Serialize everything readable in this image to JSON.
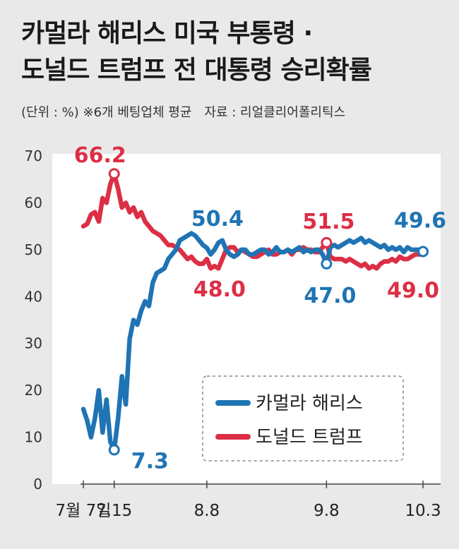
{
  "header": {
    "title_line1": "카멀라 해리스 미국 부통령 ·",
    "title_line2": "도널드 트럼프 전 대통령 승리확률",
    "unit_note": "(단위 : %) ※6개 베팅업체 평균",
    "source": "자료 : 리얼클리어폴리틱스"
  },
  "colors": {
    "harris": "#1f74b4",
    "trump": "#dc2f45",
    "background": "#e9e9e9"
  },
  "chart_data": {
    "type": "line",
    "ylim": [
      0,
      70
    ],
    "y_ticks": [
      "0",
      "10",
      "20",
      "30",
      "40",
      "50",
      "60",
      "70"
    ],
    "x_ticks": [
      {
        "pos": 0,
        "label": "7월 7일"
      },
      {
        "pos": 8,
        "label": "7.15"
      },
      {
        "pos": 32,
        "label": "8.8"
      },
      {
        "pos": 63,
        "label": "9.8"
      },
      {
        "pos": 88,
        "label": "10.3"
      }
    ],
    "xlim": [
      0,
      88
    ],
    "series": [
      {
        "name": "카멀라 해리스",
        "color": "#1f74b4",
        "points": [
          [
            0,
            16
          ],
          [
            1,
            13.5
          ],
          [
            2,
            10
          ],
          [
            3,
            14
          ],
          [
            4,
            20
          ],
          [
            5,
            11
          ],
          [
            6,
            18
          ],
          [
            7,
            9
          ],
          [
            8,
            7.3
          ],
          [
            9,
            14
          ],
          [
            10,
            23
          ],
          [
            11,
            17
          ],
          [
            12,
            31
          ],
          [
            13,
            35
          ],
          [
            14,
            34
          ],
          [
            15,
            37
          ],
          [
            16,
            39
          ],
          [
            17,
            38
          ],
          [
            18,
            43
          ],
          [
            19,
            45
          ],
          [
            20,
            45.5
          ],
          [
            21,
            46
          ],
          [
            22,
            48
          ],
          [
            23,
            49
          ],
          [
            24,
            50
          ],
          [
            25,
            52
          ],
          [
            26,
            52.5
          ],
          [
            27,
            53
          ],
          [
            28,
            53.5
          ],
          [
            29,
            53
          ],
          [
            30,
            52
          ],
          [
            31,
            51
          ],
          [
            32,
            50.4
          ],
          [
            33,
            49
          ],
          [
            34,
            50
          ],
          [
            35,
            51.5
          ],
          [
            36,
            52
          ],
          [
            37,
            50
          ],
          [
            38,
            49
          ],
          [
            39,
            48.5
          ],
          [
            40,
            49
          ],
          [
            41,
            50
          ],
          [
            42,
            50
          ],
          [
            43,
            49
          ],
          [
            44,
            49
          ],
          [
            45,
            49.5
          ],
          [
            46,
            50
          ],
          [
            47,
            50
          ],
          [
            48,
            49
          ],
          [
            49,
            49.5
          ],
          [
            50,
            50.5
          ],
          [
            51,
            49.5
          ],
          [
            52,
            49.5
          ],
          [
            53,
            50
          ],
          [
            54,
            49.5
          ],
          [
            55,
            50
          ],
          [
            56,
            50.5
          ],
          [
            57,
            49.5
          ],
          [
            58,
            50
          ],
          [
            59,
            49.5
          ],
          [
            60,
            50
          ],
          [
            61,
            50
          ],
          [
            62,
            49
          ],
          [
            63,
            47.0
          ],
          [
            64,
            50.5
          ],
          [
            65,
            51
          ],
          [
            66,
            50.5
          ],
          [
            67,
            51
          ],
          [
            68,
            51.5
          ],
          [
            69,
            52
          ],
          [
            70,
            51.5
          ],
          [
            71,
            52
          ],
          [
            72,
            52.5
          ],
          [
            73,
            51.5
          ],
          [
            74,
            52
          ],
          [
            75,
            51.5
          ],
          [
            76,
            51
          ],
          [
            77,
            50.5
          ],
          [
            78,
            51
          ],
          [
            79,
            50
          ],
          [
            80,
            50.5
          ],
          [
            81,
            50
          ],
          [
            82,
            50.5
          ],
          [
            83,
            49.5
          ],
          [
            84,
            50.5
          ],
          [
            85,
            50
          ],
          [
            86,
            50
          ],
          [
            87,
            50
          ],
          [
            88,
            49.6
          ]
        ]
      },
      {
        "name": "도널드 트럼프",
        "color": "#dc2f45",
        "points": [
          [
            0,
            55
          ],
          [
            1,
            55.5
          ],
          [
            2,
            57.5
          ],
          [
            3,
            58
          ],
          [
            4,
            56
          ],
          [
            5,
            61
          ],
          [
            6,
            60
          ],
          [
            7,
            64
          ],
          [
            8,
            66.2
          ],
          [
            9,
            63
          ],
          [
            10,
            59
          ],
          [
            11,
            60
          ],
          [
            12,
            58
          ],
          [
            13,
            59
          ],
          [
            14,
            57
          ],
          [
            15,
            58
          ],
          [
            16,
            56
          ],
          [
            17,
            55
          ],
          [
            18,
            54
          ],
          [
            19,
            53.5
          ],
          [
            20,
            53
          ],
          [
            21,
            52
          ],
          [
            22,
            51
          ],
          [
            23,
            51
          ],
          [
            24,
            50.5
          ],
          [
            25,
            50
          ],
          [
            26,
            49
          ],
          [
            27,
            48
          ],
          [
            28,
            48.5
          ],
          [
            29,
            47.5
          ],
          [
            30,
            47
          ],
          [
            31,
            47
          ],
          [
            32,
            48.0
          ],
          [
            33,
            46
          ],
          [
            34,
            46.5
          ],
          [
            35,
            46
          ],
          [
            36,
            48
          ],
          [
            37,
            50
          ],
          [
            38,
            50.5
          ],
          [
            39,
            50.5
          ],
          [
            40,
            49.5
          ],
          [
            41,
            50
          ],
          [
            42,
            49.5
          ],
          [
            43,
            49
          ],
          [
            44,
            48.5
          ],
          [
            45,
            48.5
          ],
          [
            46,
            49
          ],
          [
            47,
            49.5
          ],
          [
            48,
            50
          ],
          [
            49,
            49
          ],
          [
            50,
            49
          ],
          [
            51,
            49.5
          ],
          [
            52,
            49.5
          ],
          [
            53,
            50
          ],
          [
            54,
            49
          ],
          [
            55,
            50
          ],
          [
            56,
            50
          ],
          [
            57,
            50.5
          ],
          [
            58,
            50
          ],
          [
            59,
            50
          ],
          [
            60,
            49.5
          ],
          [
            61,
            49.5
          ],
          [
            62,
            50.5
          ],
          [
            63,
            51.5
          ],
          [
            64,
            48.5
          ],
          [
            65,
            48
          ],
          [
            66,
            48
          ],
          [
            67,
            48
          ],
          [
            68,
            47.5
          ],
          [
            69,
            48
          ],
          [
            70,
            47.5
          ],
          [
            71,
            47
          ],
          [
            72,
            46.5
          ],
          [
            73,
            47
          ],
          [
            74,
            46
          ],
          [
            75,
            46.5
          ],
          [
            76,
            46
          ],
          [
            77,
            47
          ],
          [
            78,
            47.5
          ],
          [
            79,
            47.5
          ],
          [
            80,
            48
          ],
          [
            81,
            47.5
          ],
          [
            82,
            48.5
          ],
          [
            83,
            48
          ],
          [
            84,
            48
          ],
          [
            85,
            48.5
          ],
          [
            86,
            49
          ],
          [
            87,
            49
          ],
          [
            88,
            49.0
          ]
        ]
      }
    ],
    "markers": [
      {
        "series": "harris",
        "x": 8,
        "y": 7.3
      },
      {
        "series": "harris",
        "x": 63,
        "y": 47.0
      },
      {
        "series": "harris",
        "x": 88,
        "y": 49.6
      },
      {
        "series": "trump",
        "x": 8,
        "y": 66.2
      },
      {
        "series": "trump",
        "x": 63,
        "y": 51.5
      }
    ],
    "data_labels": [
      {
        "series": "trump",
        "x": 8,
        "y": 66.2,
        "text": "66.2"
      },
      {
        "series": "harris",
        "x": 8,
        "y": 7.3,
        "text": "7.3"
      },
      {
        "series": "harris",
        "x": 32,
        "y": 50.4,
        "text": "50.4"
      },
      {
        "series": "trump",
        "x": 32,
        "y": 48.0,
        "text": "48.0"
      },
      {
        "series": "trump",
        "x": 63,
        "y": 51.5,
        "text": "51.5"
      },
      {
        "series": "harris",
        "x": 63,
        "y": 47.0,
        "text": "47.0"
      },
      {
        "series": "harris",
        "x": 88,
        "y": 49.6,
        "text": "49.6"
      },
      {
        "series": "trump",
        "x": 88,
        "y": 49.0,
        "text": "49.0"
      }
    ],
    "legend": {
      "placement": "bottom-right",
      "items": [
        {
          "series": "harris",
          "label": "카멀라 해리스"
        },
        {
          "series": "trump",
          "label": "도널드 트럼프"
        }
      ]
    }
  }
}
